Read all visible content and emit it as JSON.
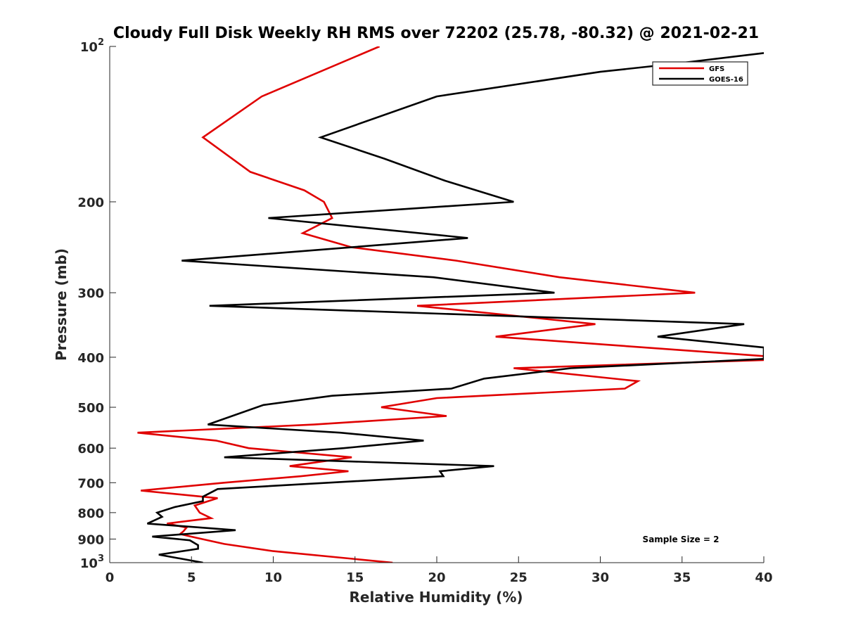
{
  "chart_data": {
    "type": "line",
    "title": "Cloudy Full Disk Weekly RH RMS over 72202 (25.78, -80.32) @ 2021-02-21",
    "xlabel": "Relative Humidity (%)",
    "ylabel": "Pressure (mb)",
    "xlim": [
      0,
      40
    ],
    "ylim": [
      100,
      1000
    ],
    "yscale": "log",
    "y_reversed": true,
    "x_ticks": [
      "0",
      "5",
      "10",
      "15",
      "20",
      "25",
      "30",
      "35",
      "40"
    ],
    "x_tick_values": [
      0,
      5,
      10,
      15,
      20,
      25,
      30,
      35,
      40
    ],
    "y_ticks": [
      {
        "value": 100,
        "base": "10",
        "exp": "2"
      },
      {
        "value": 200,
        "label": "200"
      },
      {
        "value": 300,
        "label": "300"
      },
      {
        "value": 400,
        "label": "400"
      },
      {
        "value": 500,
        "label": "500"
      },
      {
        "value": 600,
        "label": "600"
      },
      {
        "value": 700,
        "label": "700"
      },
      {
        "value": 800,
        "label": "800"
      },
      {
        "value": 900,
        "label": "900"
      },
      {
        "value": 1000,
        "base": "10",
        "exp": "3"
      }
    ],
    "grid": false,
    "legend_position": "top-right",
    "annotation": "Sample Size = 2",
    "series": [
      {
        "name": "GFS",
        "color": "#e00000",
        "points": [
          [
            16.5,
            100
          ],
          [
            9.3,
            125
          ],
          [
            5.7,
            150
          ],
          [
            8.6,
            175
          ],
          [
            11.9,
            190
          ],
          [
            13.1,
            200
          ],
          [
            13.6,
            215
          ],
          [
            11.8,
            230
          ],
          [
            14.8,
            245
          ],
          [
            21.2,
            260
          ],
          [
            27.5,
            280
          ],
          [
            35.8,
            300
          ],
          [
            18.8,
            318
          ],
          [
            29.7,
            345
          ],
          [
            23.6,
            365
          ],
          [
            40.0,
            398
          ],
          [
            40.0,
            405
          ],
          [
            24.7,
            420
          ],
          [
            32.3,
            445
          ],
          [
            31.5,
            460
          ],
          [
            20.0,
            480
          ],
          [
            16.6,
            500
          ],
          [
            20.6,
            520
          ],
          [
            12.5,
            540
          ],
          [
            1.7,
            560
          ],
          [
            6.5,
            580
          ],
          [
            8.5,
            600
          ],
          [
            14.8,
            625
          ],
          [
            11.0,
            650
          ],
          [
            14.6,
            665
          ],
          [
            11.7,
            680
          ],
          [
            7.0,
            700
          ],
          [
            1.9,
            725
          ],
          [
            6.6,
            750
          ],
          [
            5.2,
            775
          ],
          [
            5.5,
            800
          ],
          [
            6.2,
            820
          ],
          [
            3.5,
            840
          ],
          [
            4.7,
            855
          ],
          [
            4.5,
            870
          ],
          [
            4.3,
            880
          ],
          [
            5.3,
            895
          ],
          [
            7.0,
            920
          ],
          [
            10.0,
            950
          ],
          [
            17.3,
            1000
          ]
        ]
      },
      {
        "name": "GOES-16",
        "color": "#000000",
        "points": [
          [
            40.0,
            103
          ],
          [
            34.6,
            108
          ],
          [
            30.0,
            112
          ],
          [
            20.0,
            125
          ],
          [
            12.9,
            150
          ],
          [
            16.8,
            165
          ],
          [
            20.5,
            182
          ],
          [
            24.7,
            200
          ],
          [
            9.7,
            215
          ],
          [
            21.9,
            235
          ],
          [
            4.4,
            260
          ],
          [
            19.8,
            280
          ],
          [
            27.2,
            300
          ],
          [
            6.1,
            318
          ],
          [
            38.8,
            345
          ],
          [
            33.5,
            365
          ],
          [
            40.0,
            383
          ],
          [
            40.0,
            403
          ],
          [
            28.2,
            420
          ],
          [
            22.9,
            440
          ],
          [
            20.9,
            460
          ],
          [
            13.6,
            475
          ],
          [
            9.4,
            495
          ],
          [
            6.0,
            540
          ],
          [
            14.1,
            560
          ],
          [
            19.2,
            580
          ],
          [
            14.3,
            600
          ],
          [
            7.0,
            625
          ],
          [
            23.5,
            650
          ],
          [
            20.2,
            665
          ],
          [
            20.4,
            680
          ],
          [
            6.6,
            720
          ],
          [
            5.7,
            745
          ],
          [
            5.7,
            760
          ],
          [
            4.0,
            780
          ],
          [
            2.9,
            800
          ],
          [
            3.2,
            815
          ],
          [
            2.3,
            840
          ],
          [
            7.7,
            865
          ],
          [
            2.6,
            890
          ],
          [
            4.9,
            905
          ],
          [
            5.4,
            925
          ],
          [
            5.4,
            940
          ],
          [
            3.0,
            965
          ],
          [
            5.7,
            1000
          ]
        ]
      }
    ]
  }
}
